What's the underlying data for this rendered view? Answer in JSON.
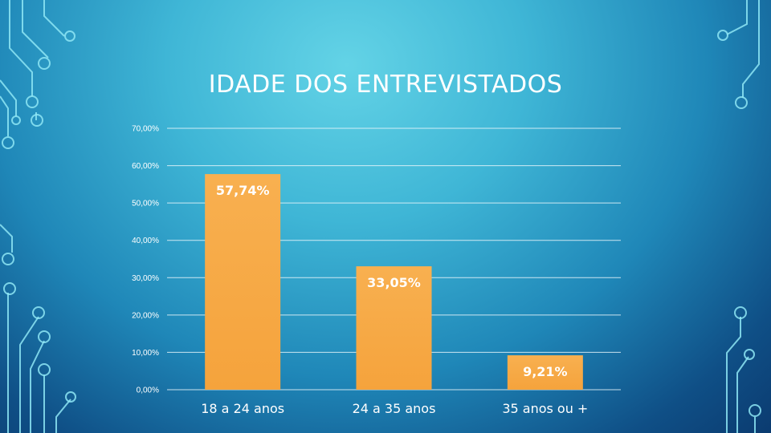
{
  "chart_data": {
    "type": "bar",
    "title": "IDADE DOS ENTREVISTADOS",
    "categories": [
      "18 a 24 anos",
      "24 a 35 anos",
      "35 anos ou +"
    ],
    "values": [
      57.74,
      33.05,
      9.21
    ],
    "data_labels": [
      "57,74%",
      "33,05%",
      "9,21%"
    ],
    "ylim": [
      0,
      70
    ],
    "yticks": [
      0,
      10,
      20,
      30,
      40,
      50,
      60,
      70
    ],
    "ytick_labels": [
      "0,00%",
      "10,00%",
      "20,00%",
      "30,00%",
      "40,00%",
      "50,00%",
      "60,00%",
      "70,00%"
    ],
    "xlabel": "",
    "ylabel": "",
    "grid": true,
    "bar_color": "#f5a33c"
  }
}
